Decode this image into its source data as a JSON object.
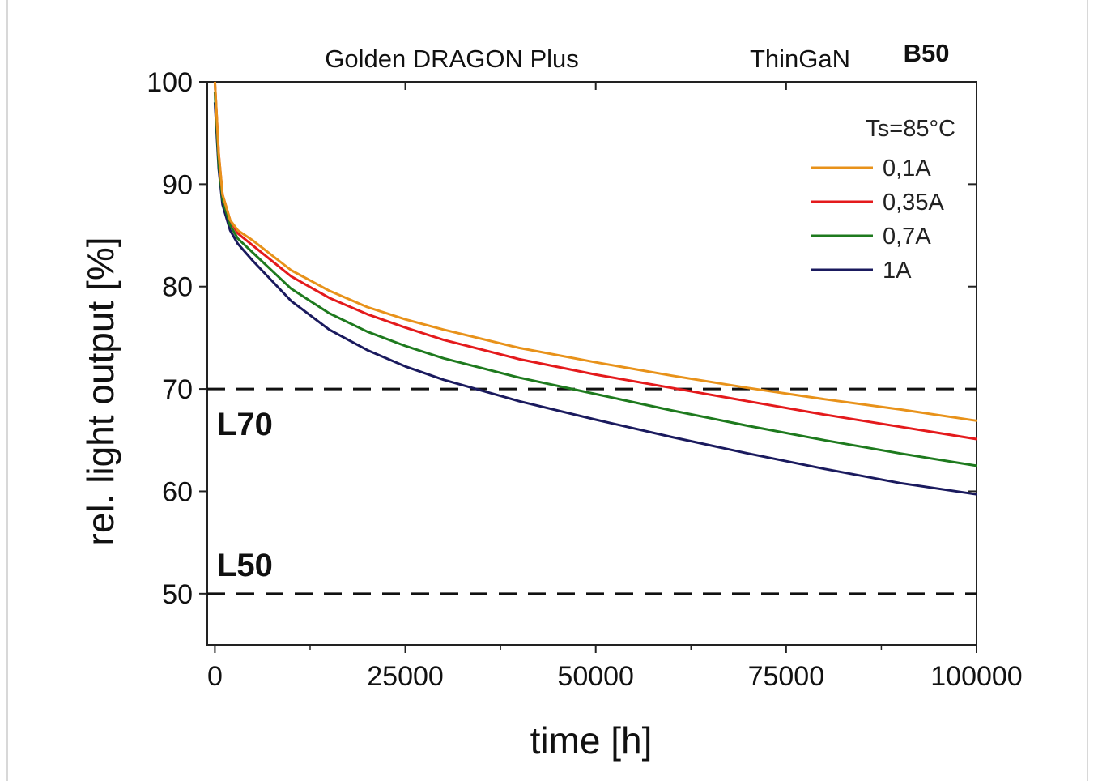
{
  "chart_data": {
    "type": "line",
    "title": "Golden DRAGON Plus",
    "subtitle_left": "ThinGaN",
    "subtitle_right": "B50",
    "condition": "Ts=85°C",
    "xlabel": "time [h]",
    "ylabel": "rel. light output [%]",
    "xlim": [
      -1000,
      100000
    ],
    "ylim": [
      45,
      100
    ],
    "xticks": [
      0,
      25000,
      50000,
      75000,
      100000
    ],
    "yticks": [
      50,
      60,
      70,
      80,
      90,
      100
    ],
    "grid": false,
    "legend_position": "top-right",
    "reference_lines": [
      {
        "label": "L70",
        "y": 70
      },
      {
        "label": "L50",
        "y": 50
      }
    ],
    "x": [
      0,
      500,
      1000,
      2000,
      3000,
      5000,
      10000,
      15000,
      20000,
      25000,
      30000,
      40000,
      50000,
      60000,
      70000,
      80000,
      90000,
      100000
    ],
    "series": [
      {
        "name": "0,1A",
        "color": "#e8921a",
        "values": [
          100,
          93,
          89,
          86.5,
          85.5,
          84.5,
          81.6,
          79.6,
          78.0,
          76.8,
          75.8,
          74.0,
          72.6,
          71.3,
          70.1,
          69.0,
          68.0,
          66.9
        ]
      },
      {
        "name": "0,35A",
        "color": "#e41a1c",
        "values": [
          100,
          93,
          89,
          86.5,
          85.2,
          84.0,
          81.0,
          78.9,
          77.3,
          76.0,
          74.8,
          72.9,
          71.4,
          70.1,
          68.8,
          67.5,
          66.3,
          65.1
        ]
      },
      {
        "name": "0,7A",
        "color": "#1e7a1e",
        "values": [
          99,
          92,
          88.5,
          86.0,
          84.7,
          83.3,
          79.8,
          77.4,
          75.6,
          74.2,
          73.0,
          71.1,
          69.5,
          67.9,
          66.4,
          65.0,
          63.7,
          62.5
        ]
      },
      {
        "name": "1A",
        "color": "#1a1a5e",
        "values": [
          98,
          91.5,
          88,
          85.5,
          84.2,
          82.5,
          78.6,
          75.8,
          73.8,
          72.2,
          70.9,
          68.8,
          67.0,
          65.3,
          63.7,
          62.2,
          60.8,
          59.7
        ]
      }
    ]
  }
}
